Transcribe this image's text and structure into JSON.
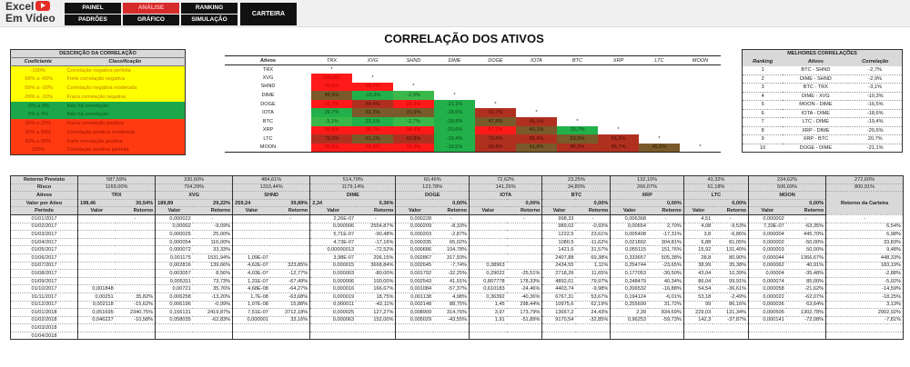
{
  "app": {
    "logo_line1": "Excel",
    "logo_line2": "Em Vídeo"
  },
  "nav": {
    "row1": [
      "PAINEL",
      "ANÁLISE",
      "RANKING"
    ],
    "row2": [
      "PADRÕES",
      "GRÁFICO",
      "SIMULAÇÃO"
    ],
    "big": "CARTEIRA",
    "active": "ANÁLISE"
  },
  "title": "CORRELAÇÃO DOS ATIVOS",
  "legend": {
    "title": "DESCRIÇÃO DA CORRELAÇÃO",
    "col1": "Coeficiente",
    "col2": "Classificação",
    "rows": [
      {
        "coef": "-100%",
        "desc": "Correlação negativa perfeita",
        "color": "yellow"
      },
      {
        "coef": "-99% a -60%",
        "desc": "Forte correlação negativa",
        "color": "yellow"
      },
      {
        "coef": "-59% a -30%",
        "desc": "Correlação negativa moderada",
        "color": "yellow"
      },
      {
        "coef": "-29% a -10%",
        "desc": "Fraca correlação negativa",
        "color": "yellow"
      },
      {
        "coef": "-9% a 0%",
        "desc": "Não há correlação",
        "color": "green"
      },
      {
        "coef": "0% a 9%",
        "desc": "Não há correlação",
        "color": "green"
      },
      {
        "coef": "10% a 29%",
        "desc": "Fraca correlação positiva",
        "color": "red"
      },
      {
        "coef": "30% a 59%",
        "desc": "Correlação positiva moderada",
        "color": "red"
      },
      {
        "coef": "60% a 99%",
        "desc": "Forte correlação positiva",
        "color": "red"
      },
      {
        "coef": "100%",
        "desc": "Correlação positiva perfeita",
        "color": "red"
      }
    ]
  },
  "correlation": {
    "corner": "Ativos",
    "assets": [
      "TRX",
      "XVG",
      "SHND",
      "DIME",
      "DOGE",
      "IOTA",
      "BTC",
      "XRP",
      "LTC",
      "MOON"
    ],
    "matrix": [
      [],
      [
        "100,0%"
      ],
      [
        "99,9%",
        "99,7%"
      ],
      [
        "45,9%",
        "-10,3%",
        "-2,9%"
      ],
      [
        "93,7%",
        "89,4%",
        "93,4%",
        "-21,1%"
      ],
      [
        "29,7%",
        "33,3%",
        "31,9%",
        "-18,6%",
        "63,7%"
      ],
      [
        "-3,1%",
        "23,1%",
        "-2,7%",
        "-28,8%",
        "47,8%",
        "66,1%"
      ],
      [
        "99,8%",
        "99,2%",
        "98,6%",
        "-20,6%",
        "97,2%",
        "40,1%",
        "20,7%"
      ],
      [
        "73,9%",
        "51,1%",
        "60,8%",
        "-19,4%",
        "73,8%",
        "86,9%",
        "53,9%",
        "66,2%"
      ],
      [
        "99,5%",
        "92,9%",
        "99,0%",
        "-16,5%",
        "89,8%",
        "41,8%",
        "86,9%",
        "86,7%",
        "45,3%"
      ]
    ],
    "diag_marker": "*"
  },
  "best": {
    "title": "MELHORES CORRELAÇÕES",
    "cols": [
      "Ranking",
      "Ativos",
      "Correlação"
    ],
    "rows": [
      [
        "1",
        "BTC - SHND",
        "-2,7%"
      ],
      [
        "2",
        "DIME - SHND",
        "-2,9%"
      ],
      [
        "3",
        "BTC - TRX",
        "-3,1%"
      ],
      [
        "4",
        "DIME - XVG",
        "-10,3%"
      ],
      [
        "5",
        "MOON - DIME",
        "-16,5%"
      ],
      [
        "6",
        "IOTA - DIME",
        "-18,6%"
      ],
      [
        "7",
        "LTC - DIME",
        "-19,4%"
      ],
      [
        "8",
        "XRP - DIME",
        "-20,6%"
      ],
      [
        "9",
        "XRP - BTC",
        "20,7%"
      ],
      [
        "10",
        "DOGE - DIME",
        "-21,1%"
      ]
    ]
  },
  "portfolio": {
    "labels": {
      "retorno": "Retorno Previsto",
      "risco": "Risco",
      "ativos": "Ativos",
      "valor_ativo": "Valor por Ativo",
      "periodo": "Período",
      "valor": "Valor",
      "retorno_col": "Retorno",
      "carteira": "Retorno da Carteira"
    },
    "assets": [
      {
        "name": "TRX",
        "retorno": "587,59%",
        "risco": "1169,00%",
        "valor": "198,46",
        "pct": "30,54%"
      },
      {
        "name": "XVG",
        "retorno": "330,60%",
        "risco": "754,29%",
        "valor": "189,89",
        "pct": "29,22%"
      },
      {
        "name": "SHND",
        "retorno": "484,61%",
        "risco": "1310,44%",
        "valor": "259,24",
        "pct": "39,89%"
      },
      {
        "name": "DIME",
        "retorno": "514,79%",
        "risco": "1179,14%",
        "valor": "2,34",
        "pct": "0,36%"
      },
      {
        "name": "DOGE",
        "retorno": "60,46%",
        "risco": "123,78%",
        "valor": "",
        "pct": "0,00%"
      },
      {
        "name": "IOTA",
        "retorno": "72,62%",
        "risco": "141,26%",
        "valor": "",
        "pct": "0,00%"
      },
      {
        "name": "BTC",
        "retorno": "23,25%",
        "risco": "34,80%",
        "valor": "",
        "pct": "0,00%"
      },
      {
        "name": "XRP",
        "retorno": "132,10%",
        "risco": "266,07%",
        "valor": "",
        "pct": "0,00%"
      },
      {
        "name": "LTC",
        "retorno": "43,32%",
        "risco": "61,18%",
        "valor": "",
        "pct": "0,00%"
      },
      {
        "name": "MOON",
        "retorno": "234,62%",
        "risco": "506,69%",
        "valor": "",
        "pct": "0,00%"
      }
    ],
    "carteira_retorno": "272,60%",
    "carteira_risco": "800,91%",
    "rows": [
      [
        "01/01/2017",
        "",
        "-",
        "0,000022",
        "-",
        "",
        "-",
        "2,26E-07",
        "-",
        "0,000228",
        "-",
        "",
        "-",
        "998,33",
        "-",
        "0,006368",
        "-",
        "4,51",
        "-",
        "0,000002",
        "-",
        "-"
      ],
      [
        "01/02/2017",
        "",
        "",
        "0,00002",
        "-9,09%",
        "",
        "",
        "0,000006",
        "2554,87%",
        "0,000209",
        "-8,33%",
        "",
        "",
        "989,02",
        "-0,93%",
        "0,00654",
        "2,70%",
        "4,08",
        "-9,53%",
        "7,33E-07",
        "-63,35%",
        "6,54%"
      ],
      [
        "01/03/2017",
        "",
        "",
        "0,000025",
        "25,00%",
        "",
        "",
        "5,71E-07",
        "-90,48%",
        "0,000203",
        "-2,87%",
        "",
        "",
        "1222,5",
        "23,61%",
        "0,005408",
        "-17,31%",
        "3,8",
        "-6,86%",
        "0,000004",
        "445,70%",
        "6,98%"
      ],
      [
        "01/04/2017",
        "",
        "",
        "0,000054",
        "116,00%",
        "",
        "",
        "4,73E-07",
        "-17,16%",
        "0,000335",
        "65,02%",
        "",
        "",
        "1080,5",
        "-11,62%",
        "0,021892",
        "304,81%",
        "6,88",
        "81,05%",
        "0,000002",
        "-50,00%",
        "33,83%"
      ],
      [
        "01/05/2017",
        "",
        "",
        "0,000072",
        "33,33%",
        "",
        "",
        "0,00000013",
        "-72,52%",
        "0,000686",
        "104,78%",
        "",
        "",
        "1421,6",
        "31,57%",
        "0,055115",
        "151,76%",
        "15,92",
        "131,40%",
        "0,000003",
        "50,00%",
        "9,48%"
      ],
      [
        "01/06/2017",
        "",
        "",
        "0,001175",
        "1531,94%",
        "1,09E-07",
        "",
        "3,98E-07",
        "206,15%",
        "0,002867",
        "317,93%",
        "",
        "",
        "2407,88",
        "69,38%",
        "0,333657",
        "505,38%",
        "28,8",
        "80,90%",
        "0,000044",
        "1366,67%",
        "448,33%"
      ],
      [
        "01/07/2017",
        "",
        "",
        "0,002816",
        "139,66%",
        "4,62E-07",
        "323,85%",
        "0,000015",
        "3668,84%",
        "0,002645",
        "-7,74%",
        "0,38963",
        "",
        "2434,55",
        "1,11%",
        "0,254744",
        "-23,65%",
        "38,99",
        "35,38%",
        "0,000062",
        "40,91%",
        "183,19%"
      ],
      [
        "01/08/2017",
        "",
        "",
        "0,003057",
        "8,56%",
        "4,03E-07",
        "-12,77%",
        "0,000003",
        "-80,00%",
        "0,001792",
        "-32,25%",
        "0,29022",
        "-25,51%",
        "2718,26",
        "11,65%",
        "0,177053",
        "-30,50%",
        "43,04",
        "10,39%",
        "0,00004",
        "-35,48%",
        "-2,88%"
      ],
      [
        "01/09/2017",
        "",
        "",
        "0,005311",
        "73,73%",
        "1,31E-07",
        "-67,49%",
        "0,000006",
        "100,00%",
        "0,002543",
        "41,91%",
        "0,807778",
        "178,33%",
        "4892,01",
        "79,97%",
        "0,248479",
        "40,34%",
        "86,04",
        "99,91%",
        "0,000074",
        "85,00%",
        "-5,02%"
      ],
      [
        "01/10/2017",
        "0,001848",
        "",
        "0,00721",
        "35,76%",
        "4,68E-08",
        "-64,27%",
        "0,000016",
        "166,67%",
        "0,001084",
        "-57,37%",
        "0,610183",
        "-24,46%",
        "4403,74",
        "-9,98%",
        "0,206532",
        "-16,88%",
        "54,54",
        "-36,61%",
        "0,000058",
        "-21,62%",
        "-14,59%"
      ],
      [
        "01/11/2017",
        "0,00251",
        "35,82%",
        "0,006258",
        "-13,20%",
        "1,7E-08",
        "-63,68%",
        "0,000019",
        "18,75%",
        "0,001138",
        "4,98%",
        "0,36392",
        "-40,36%",
        "6767,31",
        "53,67%",
        "0,194124",
        "-6,01%",
        "53,18",
        "-2,49%",
        "0,000022",
        "-62,07%",
        "-18,25%"
      ],
      [
        "01/12/2017",
        "0,002118",
        "-15,62%",
        "0,006196",
        "-0,99%",
        "1,97E-08",
        "15,88%",
        "0,000011",
        "-42,11%",
        "0,002148",
        "88,75%",
        "1,45",
        "298,44%",
        "10975,6",
        "62,19%",
        "0,255699",
        "31,72%",
        "99",
        "86,16%",
        "0,000036",
        "63,64%",
        "3,13%"
      ],
      [
        "01/01/2018",
        "0,051695",
        "2340,75%",
        "0,156131",
        "2419,87%",
        "7,51E-07",
        "3712,18%",
        "0,000025",
        "127,27%",
        "0,008909",
        "314,76%",
        "3,97",
        "173,79%",
        "13657,2",
        "24,43%",
        "2,39",
        "834,69%",
        "229,03",
        "131,34%",
        "0,000505",
        "1302,78%",
        "2902,92%"
      ],
      [
        "01/02/2018",
        "0,046227",
        "-10,58%",
        "0,058035",
        "-62,83%",
        "0,000001",
        "33,16%",
        "0,000063",
        "152,00%",
        "0,005029",
        "-43,55%",
        "1,91",
        "-51,89%",
        "9170,54",
        "-32,85%",
        "0,96253",
        "-59,73%",
        "142,3",
        "-37,87%",
        "0,000141",
        "-72,08%",
        "-7,81%"
      ],
      [
        "01/03/2018",
        "",
        "",
        "",
        "",
        "",
        "",
        "",
        "",
        "",
        "",
        "",
        "",
        "",
        "",
        "",
        "",
        "",
        "",
        "",
        "",
        ""
      ],
      [
        "01/04/2018",
        "",
        "",
        "",
        "",
        "",
        "",
        "",
        "",
        "",
        "",
        "",
        "",
        "",
        "",
        "",
        "",
        "",
        "",
        "",
        "",
        ""
      ]
    ]
  }
}
